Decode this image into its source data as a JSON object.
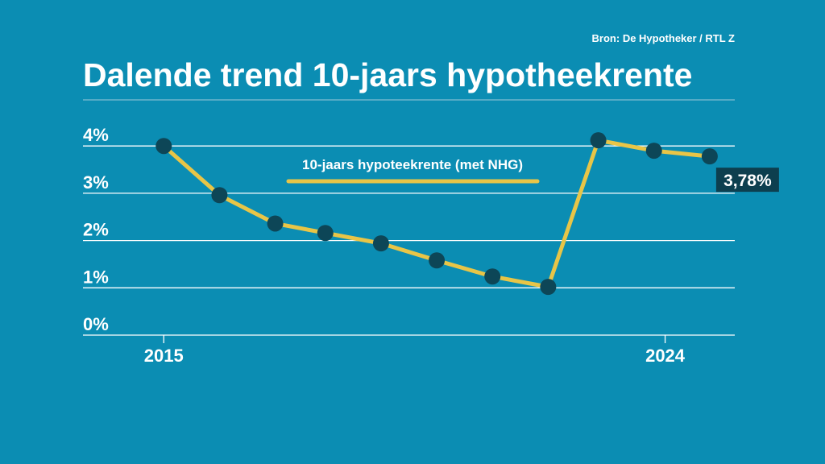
{
  "chart_data": {
    "type": "line",
    "title": "Dalende trend 10-jaars hypotheekrente",
    "source": "Bron: De Hypotheker / RTL Z",
    "x": [
      2015,
      2016,
      2017,
      2017.9,
      2018.9,
      2019.9,
      2020.9,
      2021.9,
      2022.8,
      2023.8,
      2024.8
    ],
    "series": [
      {
        "name": "10-jaars hypoteekrente (met NHG)",
        "color": "#e8c547",
        "values": [
          4.0,
          2.96,
          2.36,
          2.16,
          1.94,
          1.58,
          1.24,
          1.02,
          4.12,
          3.9,
          3.78
        ],
        "value_labels": [
          null,
          null,
          null,
          null,
          null,
          null,
          null,
          null,
          null,
          null,
          "3,78%"
        ]
      }
    ],
    "marker_color": "#0d4657",
    "xlim": [
      2013.55,
      2025.25
    ],
    "xticks": [
      2015,
      2024
    ],
    "ylim": [
      0,
      4.3
    ],
    "yticks": [
      {
        "value": 0,
        "label": "0%"
      },
      {
        "value": 1,
        "label": "1%"
      },
      {
        "value": 2,
        "label": "2%"
      },
      {
        "value": 3,
        "label": "3%"
      },
      {
        "value": 4,
        "label": "4%"
      }
    ],
    "grid": true
  }
}
